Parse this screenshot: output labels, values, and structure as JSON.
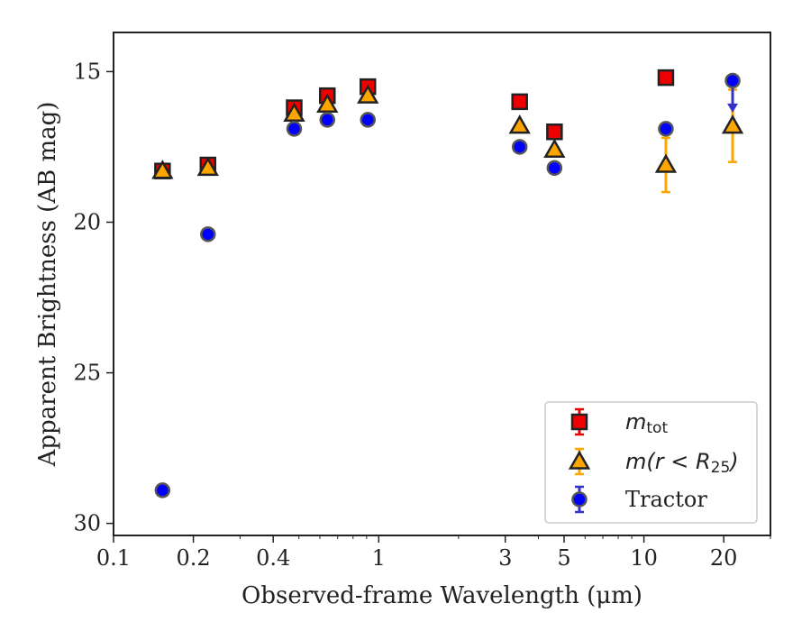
{
  "chart_data": {
    "type": "scatter",
    "title": "",
    "xlabel": "Observed-frame Wavelength (μm)",
    "ylabel": "Apparent Brightness (AB mag)",
    "xscale": "log",
    "xlim": [
      0.1,
      30
    ],
    "ylim": [
      30.4,
      13.7
    ],
    "y_inverted": true,
    "x_ticks": [
      {
        "value": 0.1,
        "label": "0.1"
      },
      {
        "value": 0.2,
        "label": "0.2"
      },
      {
        "value": 0.4,
        "label": "0.4"
      },
      {
        "value": 1,
        "label": "1"
      },
      {
        "value": 3,
        "label": "3"
      },
      {
        "value": 5,
        "label": "5"
      },
      {
        "value": 10,
        "label": "10"
      },
      {
        "value": 20,
        "label": "20"
      }
    ],
    "y_ticks": [
      {
        "value": 15,
        "label": "15"
      },
      {
        "value": 20,
        "label": "20"
      },
      {
        "value": 25,
        "label": "25"
      },
      {
        "value": 30,
        "label": "30"
      }
    ],
    "grid": false,
    "legend_position": "bottom-right",
    "series": [
      {
        "name": "m_tot",
        "marker": "square",
        "color": "#ee0000",
        "edge_color": "#222222",
        "error_color": "#ee0000",
        "points": [
          {
            "x": 0.153,
            "y": 18.3,
            "err": 0.05
          },
          {
            "x": 0.227,
            "y": 18.1,
            "err": 0.05
          },
          {
            "x": 0.48,
            "y": 16.2,
            "err": 0.05
          },
          {
            "x": 0.64,
            "y": 15.8,
            "err": 0.05
          },
          {
            "x": 0.91,
            "y": 15.5,
            "err": 0.05
          },
          {
            "x": 3.4,
            "y": 16.0,
            "err": 0.05
          },
          {
            "x": 4.6,
            "y": 17.0,
            "err": 0.05
          },
          {
            "x": 12.1,
            "y": 15.2,
            "err": 0.05
          }
        ]
      },
      {
        "name": "m(r < R_25)",
        "marker": "triangle",
        "color": "#ffa500",
        "edge_color": "#222222",
        "error_color": "#ffa500",
        "points": [
          {
            "x": 0.153,
            "y": 18.3,
            "err": 0.05
          },
          {
            "x": 0.227,
            "y": 18.2,
            "err": 0.05
          },
          {
            "x": 0.48,
            "y": 16.4,
            "err": 0.05
          },
          {
            "x": 0.64,
            "y": 16.1,
            "err": 0.05
          },
          {
            "x": 0.91,
            "y": 15.8,
            "err": 0.05
          },
          {
            "x": 3.4,
            "y": 16.8,
            "err": 0.05
          },
          {
            "x": 4.6,
            "y": 17.6,
            "err": 0.05
          },
          {
            "x": 12.1,
            "y": 18.1,
            "err": 0.9
          },
          {
            "x": 21.6,
            "y": 16.8,
            "err": 1.2
          }
        ]
      },
      {
        "name": "Tractor",
        "marker": "circle",
        "color": "#0000ff",
        "edge_color": "#555555",
        "error_color": "#3333cc",
        "points": [
          {
            "x": 0.153,
            "y": 28.9,
            "err": 0.05
          },
          {
            "x": 0.227,
            "y": 20.4,
            "err": 0.05
          },
          {
            "x": 0.48,
            "y": 16.9,
            "err": 0.05
          },
          {
            "x": 0.64,
            "y": 16.6,
            "err": 0.05
          },
          {
            "x": 0.91,
            "y": 16.6,
            "err": 0.05
          },
          {
            "x": 3.4,
            "y": 17.5,
            "err": 0.05
          },
          {
            "x": 4.6,
            "y": 18.2,
            "err": 0.05
          },
          {
            "x": 12.1,
            "y": 16.9,
            "err": 0.05
          },
          {
            "x": 21.6,
            "y": 15.3,
            "err": 0.05,
            "upper_limit": true,
            "limit_to": 16.3
          }
        ]
      }
    ],
    "legend": [
      {
        "marker": "square",
        "label_main": "m",
        "label_sub": "tot",
        "label_rest": ""
      },
      {
        "marker": "triangle",
        "label_main": "m(r < R",
        "label_sub": "25",
        "label_rest": ")"
      },
      {
        "marker": "circle",
        "label_main": "Tractor",
        "label_sub": "",
        "label_rest": ""
      }
    ]
  }
}
